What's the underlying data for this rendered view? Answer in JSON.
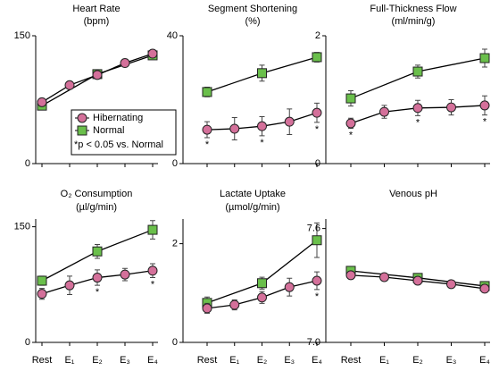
{
  "chart_data": [
    {
      "type": "line",
      "title": "Heart Rate",
      "subtitle": "(bpm)",
      "ylim": [
        0,
        150
      ],
      "yticks": [
        0,
        150
      ],
      "legend": "center-right",
      "legend_note": "*p < 0.05 vs. Normal",
      "series": [
        {
          "name": "Hibernating",
          "color": "#d4709a",
          "values": [
            72,
            92,
            104,
            118,
            129
          ],
          "errors": [
            3,
            3,
            3,
            3,
            3
          ]
        },
        {
          "name": "Normal",
          "color": "#6abf4b",
          "values": [
            68,
            null,
            105,
            null,
            127
          ],
          "errors": [
            3,
            null,
            3,
            null,
            3
          ]
        }
      ]
    },
    {
      "type": "line",
      "title": "Segment Shortening",
      "subtitle": "(%)",
      "ylim": [
        0,
        40
      ],
      "yticks": [
        0,
        40
      ],
      "annotations": [
        "*",
        null,
        "*",
        null,
        "*"
      ],
      "series": [
        {
          "color": "#d4709a",
          "values": [
            10.6,
            10.9,
            11.7,
            13.1,
            15.9
          ],
          "errors": [
            2.5,
            3.5,
            3,
            4,
            3
          ]
        },
        {
          "color": "#6abf4b",
          "values": [
            22.4,
            null,
            28.3,
            null,
            33.3
          ],
          "errors": [
            1.5,
            null,
            2.5,
            null,
            1.5
          ]
        }
      ]
    },
    {
      "type": "line",
      "title": "Full-Thickness Flow",
      "subtitle": "(ml/min/g)",
      "ylim": [
        0,
        2
      ],
      "yticks": [
        0,
        2
      ],
      "annotations": [
        "*",
        null,
        "*",
        null,
        "*"
      ],
      "series": [
        {
          "color": "#d4709a",
          "values": [
            0.63,
            0.81,
            0.87,
            0.88,
            0.91
          ],
          "errors": [
            0.08,
            0.1,
            0.12,
            0.12,
            0.15
          ]
        },
        {
          "color": "#6abf4b",
          "values": [
            1.02,
            null,
            1.44,
            null,
            1.65
          ],
          "errors": [
            0.12,
            null,
            0.1,
            null,
            0.14
          ]
        }
      ]
    },
    {
      "type": "line",
      "title": "O₂ Consumption",
      "subtitle": "(µl/g/min)",
      "ylim": [
        0,
        160
      ],
      "yticks": [
        0,
        150
      ],
      "categories": [
        "Rest",
        "E₁",
        "E₂",
        "E₃",
        "E₄"
      ],
      "annotations": [
        null,
        null,
        "*",
        null,
        "*"
      ],
      "series": [
        {
          "color": "#d4709a",
          "values": [
            63,
            74,
            84,
            88,
            93
          ],
          "errors": [
            7,
            12,
            10,
            8,
            9
          ]
        },
        {
          "color": "#6abf4b",
          "values": [
            80,
            null,
            118,
            null,
            146
          ],
          "errors": [
            6,
            null,
            9,
            null,
            12
          ]
        }
      ]
    },
    {
      "type": "line",
      "title": "Lactate Uptake",
      "subtitle": "(µmol/g/min)",
      "ylim": [
        0,
        2.5
      ],
      "yticks": [
        0,
        2
      ],
      "categories": [
        "Rest",
        "E₁",
        "E₂",
        "E₃",
        "E₄"
      ],
      "annotations": [
        null,
        null,
        null,
        null,
        "*"
      ],
      "series": [
        {
          "color": "#d4709a",
          "values": [
            0.69,
            0.76,
            0.91,
            1.12,
            1.25
          ],
          "errors": [
            0.1,
            0.1,
            0.12,
            0.18,
            0.18
          ]
        },
        {
          "color": "#6abf4b",
          "values": [
            0.8,
            null,
            1.2,
            null,
            2.07
          ],
          "errors": [
            0.12,
            null,
            0.12,
            null,
            0.35
          ]
        }
      ]
    },
    {
      "type": "line",
      "title": "Venous pH",
      "ylim": [
        7.0,
        7.65
      ],
      "yticks": [
        {
          "value": 7.0,
          "label": "7.0"
        },
        7.6
      ],
      "categories": [
        "Rest",
        "E₁",
        "E₂",
        "E₃",
        "E₄"
      ],
      "series": [
        {
          "color": "#d4709a",
          "values": [
            7.354,
            7.344,
            7.325,
            7.307,
            7.283
          ],
          "errors": [
            0.008,
            0.006,
            0.008,
            0.006,
            0.01
          ]
        },
        {
          "color": "#6abf4b",
          "values": [
            7.377,
            null,
            7.34,
            null,
            7.297
          ],
          "errors": [
            0.008,
            null,
            0.008,
            null,
            0.008
          ]
        }
      ]
    }
  ]
}
